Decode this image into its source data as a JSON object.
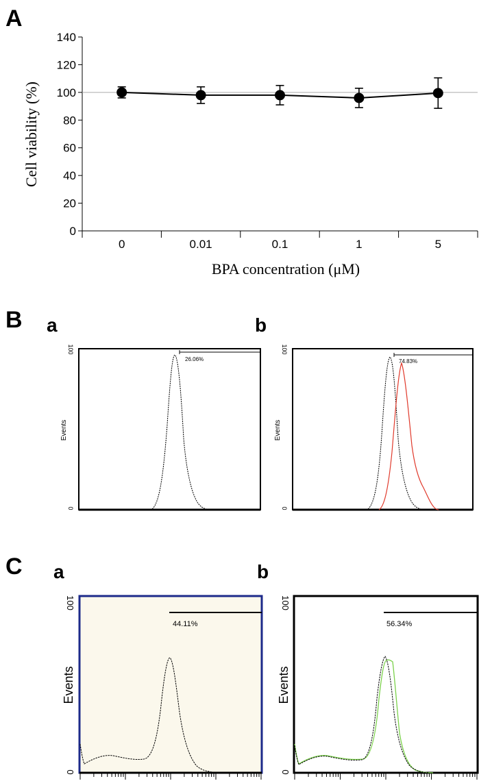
{
  "panels": {
    "A": {
      "letter": "A"
    },
    "B": {
      "letter": "B",
      "a": "a",
      "b": "b"
    },
    "C": {
      "letter": "C",
      "a": "a",
      "b": "b"
    }
  },
  "colors": {
    "black": "#000000",
    "red": "#e0392b",
    "green": "#7bd14b",
    "navy": "#1c2a8a",
    "cream": "#fbf8ec",
    "reference": "#aaaaaa"
  },
  "chart_data": [
    {
      "id": "A",
      "type": "line",
      "title": "",
      "xlabel": "BPA concentration (μM)",
      "ylabel": "Cell viability (%)",
      "categories": [
        "0",
        "0.01",
        "0.1",
        "1",
        "5"
      ],
      "series": [
        {
          "values": [
            100,
            98,
            98,
            96,
            99.5
          ],
          "errors": [
            4,
            6,
            7,
            7,
            11
          ]
        }
      ],
      "reference_line": 100,
      "ylim": [
        0,
        140
      ],
      "yticks": [
        "0",
        "20",
        "40",
        "60",
        "80",
        "100",
        "120",
        "140"
      ]
    },
    {
      "id": "B-a",
      "type": "area",
      "ylabel": "Events",
      "ymax_label": "100",
      "ymin_label": "0",
      "gate_label": "26.06%"
    },
    {
      "id": "B-b",
      "type": "area",
      "ylabel": "Events",
      "ymax_label": "100",
      "ymin_label": "0",
      "gate_label": "74.83%"
    },
    {
      "id": "C-a",
      "type": "area",
      "ylabel": "Events",
      "ymax_label": "100",
      "ymin_label": "0",
      "gate_label": "44.11%"
    },
    {
      "id": "C-b",
      "type": "area",
      "ylabel": "Events",
      "ymax_label": "100",
      "ymin_label": "0",
      "gate_label": "56.34%"
    }
  ]
}
